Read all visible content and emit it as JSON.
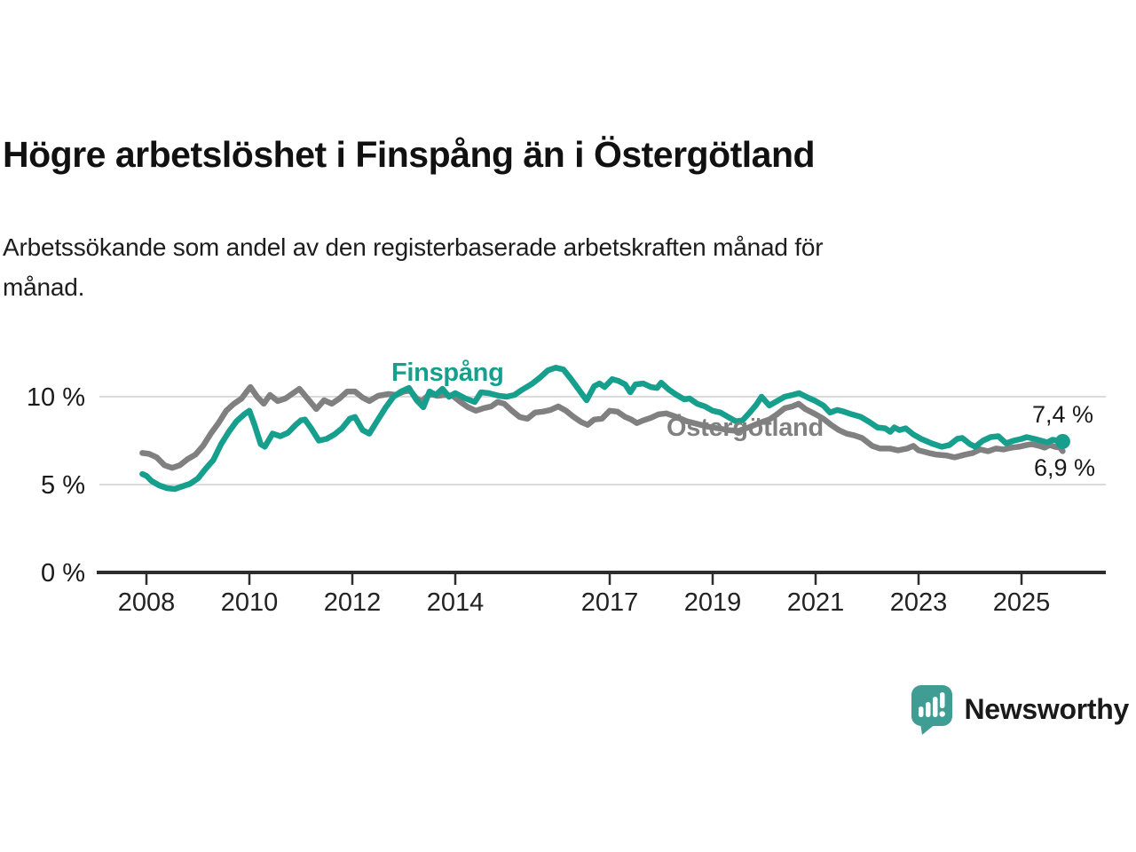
{
  "header": {
    "title": "Högre arbetslöshet i Finspång än i Östergötland",
    "subtitle_line1": "Arbetssökande som andel av den registerbaserade arbetskraften månad för",
    "subtitle_line2": "månad."
  },
  "colors": {
    "finspang": "#169F8D",
    "ostergotland": "#808080",
    "gridline": "#DBDBDB",
    "axis": "#2D2D2D",
    "text": "#1A1A1A",
    "logo_teal": "#3F9D94"
  },
  "chart_data": {
    "type": "line",
    "title": "Högre arbetslöshet i Finspång än i Östergötland",
    "xlabel": "",
    "ylabel": "Arbetssökande som andel av den registerbaserade arbetskraften (%)",
    "grid": "horizontal-only",
    "legend_position": "inline-labels",
    "x_axis": {
      "min": 2007.9,
      "max": 2025.95,
      "ticks": [
        2008,
        2010,
        2012,
        2014,
        2017,
        2019,
        2021,
        2023,
        2025
      ],
      "tick_labels": [
        "2008",
        "2010",
        "2012",
        "2014",
        "2017",
        "2019",
        "2021",
        "2023",
        "2025"
      ]
    },
    "y_axis": {
      "min": 0,
      "max": 12.5,
      "ticks": [
        0,
        5,
        10
      ],
      "tick_labels": [
        "0 %",
        "5 %",
        "10 %"
      ]
    },
    "series": [
      {
        "name": "Östergötland",
        "color": "#808080",
        "end_value": 6.9,
        "end_label": "6,9 %",
        "points": [
          [
            2007.92,
            6.8
          ],
          [
            2008.05,
            6.75
          ],
          [
            2008.2,
            6.55
          ],
          [
            2008.35,
            6.1
          ],
          [
            2008.5,
            5.95
          ],
          [
            2008.65,
            6.1
          ],
          [
            2008.8,
            6.45
          ],
          [
            2008.95,
            6.7
          ],
          [
            2009.1,
            7.2
          ],
          [
            2009.25,
            7.9
          ],
          [
            2009.4,
            8.5
          ],
          [
            2009.55,
            9.2
          ],
          [
            2009.7,
            9.6
          ],
          [
            2009.85,
            9.9
          ],
          [
            2009.95,
            10.3
          ],
          [
            2010.02,
            10.55
          ],
          [
            2010.15,
            10.0
          ],
          [
            2010.28,
            9.6
          ],
          [
            2010.4,
            10.1
          ],
          [
            2010.55,
            9.75
          ],
          [
            2010.7,
            9.9
          ],
          [
            2010.85,
            10.2
          ],
          [
            2010.97,
            10.45
          ],
          [
            2011.1,
            10.0
          ],
          [
            2011.3,
            9.3
          ],
          [
            2011.45,
            9.8
          ],
          [
            2011.6,
            9.6
          ],
          [
            2011.75,
            9.9
          ],
          [
            2011.9,
            10.3
          ],
          [
            2012.05,
            10.3
          ],
          [
            2012.2,
            9.95
          ],
          [
            2012.33,
            9.75
          ],
          [
            2012.5,
            10.05
          ],
          [
            2012.7,
            10.15
          ],
          [
            2012.85,
            10.1
          ],
          [
            2013.0,
            10.3
          ],
          [
            2013.12,
            10.35
          ],
          [
            2013.25,
            9.9
          ],
          [
            2013.35,
            9.75
          ],
          [
            2013.5,
            10.15
          ],
          [
            2013.65,
            10.05
          ],
          [
            2013.8,
            10.1
          ],
          [
            2013.95,
            10.05
          ],
          [
            2014.1,
            9.7
          ],
          [
            2014.25,
            9.4
          ],
          [
            2014.4,
            9.2
          ],
          [
            2014.55,
            9.35
          ],
          [
            2014.7,
            9.45
          ],
          [
            2014.82,
            9.7
          ],
          [
            2014.95,
            9.6
          ],
          [
            2015.1,
            9.2
          ],
          [
            2015.25,
            8.85
          ],
          [
            2015.4,
            8.75
          ],
          [
            2015.55,
            9.1
          ],
          [
            2015.7,
            9.15
          ],
          [
            2015.85,
            9.25
          ],
          [
            2016.0,
            9.45
          ],
          [
            2016.15,
            9.2
          ],
          [
            2016.3,
            8.85
          ],
          [
            2016.45,
            8.55
          ],
          [
            2016.57,
            8.4
          ],
          [
            2016.7,
            8.7
          ],
          [
            2016.85,
            8.75
          ],
          [
            2017.0,
            9.2
          ],
          [
            2017.15,
            9.15
          ],
          [
            2017.3,
            8.85
          ],
          [
            2017.42,
            8.7
          ],
          [
            2017.53,
            8.5
          ],
          [
            2017.65,
            8.65
          ],
          [
            2017.8,
            8.8
          ],
          [
            2017.95,
            9.0
          ],
          [
            2018.1,
            9.05
          ],
          [
            2018.3,
            8.85
          ],
          [
            2018.5,
            8.6
          ],
          [
            2018.7,
            8.45
          ],
          [
            2018.9,
            8.3
          ],
          [
            2019.1,
            8.2
          ],
          [
            2019.3,
            8.1
          ],
          [
            2019.5,
            8.05
          ],
          [
            2019.7,
            8.25
          ],
          [
            2019.9,
            8.5
          ],
          [
            2020.1,
            8.7
          ],
          [
            2020.25,
            9.0
          ],
          [
            2020.4,
            9.35
          ],
          [
            2020.55,
            9.45
          ],
          [
            2020.67,
            9.6
          ],
          [
            2020.8,
            9.3
          ],
          [
            2021.0,
            9.0
          ],
          [
            2021.15,
            8.75
          ],
          [
            2021.3,
            8.4
          ],
          [
            2021.45,
            8.1
          ],
          [
            2021.6,
            7.9
          ],
          [
            2021.75,
            7.8
          ],
          [
            2021.9,
            7.65
          ],
          [
            2022.1,
            7.2
          ],
          [
            2022.25,
            7.05
          ],
          [
            2022.45,
            7.05
          ],
          [
            2022.6,
            6.95
          ],
          [
            2022.78,
            7.05
          ],
          [
            2022.9,
            7.2
          ],
          [
            2023.0,
            6.95
          ],
          [
            2023.2,
            6.8
          ],
          [
            2023.35,
            6.7
          ],
          [
            2023.55,
            6.65
          ],
          [
            2023.7,
            6.55
          ],
          [
            2023.9,
            6.7
          ],
          [
            2024.05,
            6.8
          ],
          [
            2024.2,
            7.0
          ],
          [
            2024.35,
            6.9
          ],
          [
            2024.5,
            7.05
          ],
          [
            2024.65,
            7.0
          ],
          [
            2024.8,
            7.1
          ],
          [
            2024.95,
            7.15
          ],
          [
            2025.1,
            7.25
          ],
          [
            2025.2,
            7.3
          ],
          [
            2025.35,
            7.2
          ],
          [
            2025.45,
            7.1
          ],
          [
            2025.55,
            7.25
          ],
          [
            2025.65,
            7.15
          ],
          [
            2025.75,
            7.1
          ],
          [
            2025.8,
            6.9
          ]
        ]
      },
      {
        "name": "Finspång",
        "color": "#169F8D",
        "end_value": 7.4,
        "end_label": "7,4 %",
        "points": [
          [
            2007.92,
            5.6
          ],
          [
            2008.0,
            5.5
          ],
          [
            2008.1,
            5.2
          ],
          [
            2008.25,
            4.95
          ],
          [
            2008.4,
            4.8
          ],
          [
            2008.55,
            4.75
          ],
          [
            2008.7,
            4.9
          ],
          [
            2008.85,
            5.05
          ],
          [
            2009.0,
            5.35
          ],
          [
            2009.15,
            5.9
          ],
          [
            2009.3,
            6.4
          ],
          [
            2009.45,
            7.3
          ],
          [
            2009.6,
            8.0
          ],
          [
            2009.75,
            8.6
          ],
          [
            2009.9,
            9.0
          ],
          [
            2010.0,
            9.2
          ],
          [
            2010.1,
            8.4
          ],
          [
            2010.22,
            7.3
          ],
          [
            2010.3,
            7.15
          ],
          [
            2010.45,
            7.9
          ],
          [
            2010.6,
            7.75
          ],
          [
            2010.75,
            7.95
          ],
          [
            2010.9,
            8.4
          ],
          [
            2011.0,
            8.65
          ],
          [
            2011.08,
            8.7
          ],
          [
            2011.2,
            8.2
          ],
          [
            2011.35,
            7.5
          ],
          [
            2011.5,
            7.6
          ],
          [
            2011.65,
            7.85
          ],
          [
            2011.8,
            8.2
          ],
          [
            2011.95,
            8.75
          ],
          [
            2012.05,
            8.85
          ],
          [
            2012.2,
            8.1
          ],
          [
            2012.33,
            7.9
          ],
          [
            2012.5,
            8.7
          ],
          [
            2012.65,
            9.4
          ],
          [
            2012.8,
            10.0
          ],
          [
            2012.95,
            10.3
          ],
          [
            2013.1,
            10.5
          ],
          [
            2013.25,
            9.8
          ],
          [
            2013.38,
            9.4
          ],
          [
            2013.5,
            10.3
          ],
          [
            2013.62,
            10.1
          ],
          [
            2013.75,
            10.45
          ],
          [
            2013.88,
            10.0
          ],
          [
            2014.0,
            10.2
          ],
          [
            2014.2,
            9.9
          ],
          [
            2014.38,
            9.7
          ],
          [
            2014.5,
            10.25
          ],
          [
            2014.65,
            10.2
          ],
          [
            2014.85,
            10.05
          ],
          [
            2015.0,
            10.0
          ],
          [
            2015.15,
            10.1
          ],
          [
            2015.3,
            10.4
          ],
          [
            2015.5,
            10.75
          ],
          [
            2015.65,
            11.1
          ],
          [
            2015.8,
            11.5
          ],
          [
            2015.95,
            11.65
          ],
          [
            2016.1,
            11.55
          ],
          [
            2016.25,
            11.0
          ],
          [
            2016.4,
            10.4
          ],
          [
            2016.55,
            9.8
          ],
          [
            2016.7,
            10.6
          ],
          [
            2016.8,
            10.75
          ],
          [
            2016.9,
            10.55
          ],
          [
            2017.05,
            11.0
          ],
          [
            2017.17,
            10.9
          ],
          [
            2017.3,
            10.7
          ],
          [
            2017.4,
            10.25
          ],
          [
            2017.5,
            10.7
          ],
          [
            2017.65,
            10.75
          ],
          [
            2017.8,
            10.55
          ],
          [
            2017.92,
            10.5
          ],
          [
            2018.0,
            10.8
          ],
          [
            2018.15,
            10.4
          ],
          [
            2018.3,
            10.1
          ],
          [
            2018.45,
            9.85
          ],
          [
            2018.55,
            9.9
          ],
          [
            2018.7,
            9.6
          ],
          [
            2018.85,
            9.45
          ],
          [
            2019.0,
            9.2
          ],
          [
            2019.15,
            9.1
          ],
          [
            2019.3,
            8.85
          ],
          [
            2019.45,
            8.6
          ],
          [
            2019.58,
            8.65
          ],
          [
            2019.72,
            9.1
          ],
          [
            2019.85,
            9.55
          ],
          [
            2019.95,
            10.0
          ],
          [
            2020.1,
            9.5
          ],
          [
            2020.25,
            9.75
          ],
          [
            2020.4,
            10.0
          ],
          [
            2020.55,
            10.1
          ],
          [
            2020.68,
            10.2
          ],
          [
            2020.85,
            9.95
          ],
          [
            2021.0,
            9.75
          ],
          [
            2021.15,
            9.5
          ],
          [
            2021.28,
            9.1
          ],
          [
            2021.42,
            9.25
          ],
          [
            2021.55,
            9.15
          ],
          [
            2021.7,
            9.0
          ],
          [
            2021.88,
            8.85
          ],
          [
            2022.05,
            8.55
          ],
          [
            2022.2,
            8.25
          ],
          [
            2022.35,
            8.2
          ],
          [
            2022.45,
            8.0
          ],
          [
            2022.53,
            8.25
          ],
          [
            2022.63,
            8.1
          ],
          [
            2022.75,
            8.2
          ],
          [
            2022.9,
            7.85
          ],
          [
            2023.05,
            7.6
          ],
          [
            2023.25,
            7.35
          ],
          [
            2023.45,
            7.15
          ],
          [
            2023.6,
            7.25
          ],
          [
            2023.75,
            7.6
          ],
          [
            2023.85,
            7.65
          ],
          [
            2024.0,
            7.3
          ],
          [
            2024.1,
            7.15
          ],
          [
            2024.25,
            7.5
          ],
          [
            2024.4,
            7.7
          ],
          [
            2024.55,
            7.75
          ],
          [
            2024.7,
            7.35
          ],
          [
            2024.85,
            7.5
          ],
          [
            2025.0,
            7.6
          ],
          [
            2025.1,
            7.7
          ],
          [
            2025.25,
            7.6
          ],
          [
            2025.38,
            7.5
          ],
          [
            2025.5,
            7.4
          ],
          [
            2025.6,
            7.55
          ],
          [
            2025.7,
            7.5
          ],
          [
            2025.8,
            7.45
          ]
        ]
      }
    ]
  },
  "branding": {
    "logo_text": "Newsworthy"
  }
}
